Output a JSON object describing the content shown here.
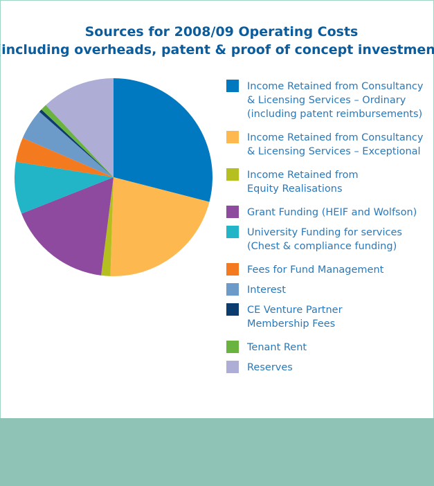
{
  "chart_data": {
    "type": "pie",
    "title": [
      "Sources for 2008/09 Operating Costs",
      "(including overheads, patent & proof of concept investment)"
    ],
    "categories": [
      [
        "Income Retained from Consultancy",
        "& Licensing Services – Ordinary",
        "(including patent reimbursements)"
      ],
      [
        "Income Retained from Consultancy",
        "& Licensing Services – Exceptional"
      ],
      [
        "Income Retained from",
        "Equity Realisations"
      ],
      [
        "Grant Funding (HEIF and Wolfson)"
      ],
      [
        "University Funding for services",
        "(Chest & compliance funding)"
      ],
      [
        "Fees for Fund Management"
      ],
      [
        "Interest"
      ],
      [
        "CE Venture Partner",
        "Membership Fees"
      ],
      [
        "Tenant Rent"
      ],
      [
        "Reserves"
      ]
    ],
    "values": [
      29,
      21.5,
      1.5,
      17,
      8.5,
      4,
      5,
      0.5,
      1,
      12
    ],
    "colors": [
      "#0079c1",
      "#fdb94f",
      "#b5c020",
      "#8e4a9e",
      "#22b5c8",
      "#f47a20",
      "#6d9bc9",
      "#0c3c6e",
      "#6bb33f",
      "#adadd6"
    ]
  }
}
